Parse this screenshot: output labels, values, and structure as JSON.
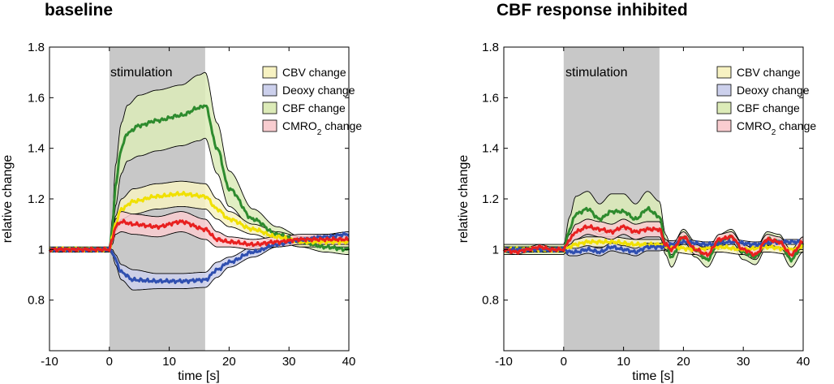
{
  "chart_data": [
    {
      "type": "line",
      "title": "baseline",
      "xlabel": "time [s]",
      "ylabel": "relative change",
      "xlim": [
        -10,
        40
      ],
      "ylim": [
        0.6,
        1.8
      ],
      "xticks": [
        -10,
        0,
        10,
        20,
        30,
        40
      ],
      "yticks": [
        0.8,
        1,
        1.2,
        1.4,
        1.6,
        1.8
      ],
      "stimulation": {
        "label": "stimulation",
        "start": 0,
        "end": 16
      },
      "legend": [
        {
          "label": "CBV change",
          "fill": "#f7f2c2"
        },
        {
          "label": "Deoxy change",
          "fill": "#ccd0ec"
        },
        {
          "label": "CBF change",
          "fill": "#dcebb8"
        },
        {
          "label": "CMRO",
          "sub": "2",
          "suffix": " change",
          "fill": "#f9cdd0"
        }
      ],
      "series": [
        {
          "name": "CBF change",
          "color": "#2e8b2e",
          "band": "#dcebb8",
          "x": [
            -10,
            0,
            0.5,
            1,
            2,
            3,
            5,
            8,
            12,
            15,
            16,
            18,
            20,
            24,
            28,
            32,
            36,
            40
          ],
          "y": [
            1.0,
            1.0,
            1.08,
            1.25,
            1.4,
            1.46,
            1.49,
            1.51,
            1.53,
            1.56,
            1.57,
            1.4,
            1.24,
            1.12,
            1.06,
            1.03,
            1.01,
            1.0
          ],
          "spread": [
            0.01,
            0.01,
            0.04,
            0.08,
            0.1,
            0.11,
            0.12,
            0.12,
            0.12,
            0.13,
            0.13,
            0.1,
            0.07,
            0.04,
            0.03,
            0.02,
            0.02,
            0.02
          ]
        },
        {
          "name": "CBV change",
          "color": "#f0e000",
          "band": "#f7f2c2",
          "x": [
            -10,
            0,
            0.5,
            1,
            2,
            4,
            8,
            12,
            16,
            18,
            20,
            24,
            28,
            32,
            36,
            40
          ],
          "y": [
            1.0,
            1.0,
            1.05,
            1.1,
            1.16,
            1.19,
            1.21,
            1.22,
            1.21,
            1.16,
            1.12,
            1.08,
            1.05,
            1.03,
            1.03,
            1.03
          ],
          "spread": [
            0.005,
            0.005,
            0.02,
            0.03,
            0.04,
            0.05,
            0.05,
            0.05,
            0.05,
            0.04,
            0.03,
            0.02,
            0.02,
            0.02,
            0.02,
            0.02
          ]
        },
        {
          "name": "Deoxy change",
          "color": "#2f4fb0",
          "band": "#ccd0ec",
          "x": [
            -10,
            0,
            0.5,
            1,
            2,
            4,
            8,
            12,
            16,
            18,
            20,
            24,
            28,
            32,
            36,
            40
          ],
          "y": [
            1.0,
            1.0,
            0.99,
            0.96,
            0.91,
            0.88,
            0.875,
            0.875,
            0.88,
            0.92,
            0.95,
            0.99,
            1.02,
            1.04,
            1.05,
            1.06
          ],
          "spread": [
            0.005,
            0.005,
            0.01,
            0.02,
            0.03,
            0.04,
            0.03,
            0.03,
            0.03,
            0.03,
            0.02,
            0.02,
            0.01,
            0.01,
            0.01,
            0.01
          ]
        },
        {
          "name": "CMRO2 change",
          "color": "#e82020",
          "band": "#f9cdd0",
          "x": [
            -10,
            0,
            0.5,
            1,
            2,
            4,
            8,
            12,
            16,
            18,
            20,
            24,
            28,
            32,
            36,
            40
          ],
          "y": [
            1.0,
            1.0,
            1.04,
            1.09,
            1.11,
            1.1,
            1.09,
            1.11,
            1.08,
            1.04,
            1.03,
            1.02,
            1.03,
            1.04,
            1.04,
            1.04
          ],
          "spread": [
            0.005,
            0.005,
            0.02,
            0.03,
            0.04,
            0.04,
            0.04,
            0.04,
            0.04,
            0.03,
            0.02,
            0.02,
            0.02,
            0.02,
            0.02,
            0.02
          ]
        }
      ]
    },
    {
      "type": "line",
      "title": "CBF response inhibited",
      "xlabel": "time [s]",
      "ylabel": "relative change",
      "xlim": [
        -10,
        40
      ],
      "ylim": [
        0.6,
        1.8
      ],
      "xticks": [
        -10,
        0,
        10,
        20,
        30,
        40
      ],
      "yticks": [
        0.8,
        1,
        1.2,
        1.4,
        1.6,
        1.8
      ],
      "stimulation": {
        "label": "stimulation",
        "start": 0,
        "end": 16
      },
      "legend": [
        {
          "label": "CBV change",
          "fill": "#f7f2c2"
        },
        {
          "label": "Deoxy change",
          "fill": "#ccd0ec"
        },
        {
          "label": "CBF change",
          "fill": "#dcebb8"
        },
        {
          "label": "CMRO",
          "sub": "2",
          "suffix": " change",
          "fill": "#f9cdd0"
        }
      ],
      "series": [
        {
          "name": "CBF change",
          "color": "#2e8b2e",
          "band": "#dcebb8",
          "x": [
            -10,
            0,
            1,
            2,
            4,
            6,
            8,
            10,
            12,
            14,
            16,
            17,
            18,
            20,
            22,
            24,
            26,
            28,
            30,
            32,
            34,
            36,
            38,
            40
          ],
          "y": [
            1.0,
            1.0,
            1.08,
            1.14,
            1.16,
            1.12,
            1.15,
            1.15,
            1.12,
            1.16,
            1.13,
            1.02,
            0.97,
            1.05,
            1.0,
            0.96,
            1.03,
            1.05,
            0.99,
            0.97,
            1.04,
            1.03,
            0.96,
            1.02
          ],
          "spread": [
            0.02,
            0.02,
            0.05,
            0.07,
            0.07,
            0.06,
            0.07,
            0.07,
            0.06,
            0.07,
            0.06,
            0.04,
            0.04,
            0.03,
            0.03,
            0.03,
            0.03,
            0.03,
            0.03,
            0.03,
            0.03,
            0.03,
            0.03,
            0.03
          ]
        },
        {
          "name": "CBV change",
          "color": "#f0e000",
          "band": "#f7f2c2",
          "x": [
            -10,
            0,
            2,
            4,
            8,
            12,
            16,
            18,
            22,
            26,
            30,
            34,
            38,
            40
          ],
          "y": [
            1.0,
            1.0,
            1.02,
            1.03,
            1.03,
            1.02,
            1.02,
            1.01,
            1.0,
            1.01,
            1.0,
            1.01,
            1.0,
            1.01
          ],
          "spread": [
            0.01,
            0.01,
            0.02,
            0.02,
            0.02,
            0.02,
            0.02,
            0.02,
            0.02,
            0.02,
            0.02,
            0.02,
            0.02,
            0.02
          ]
        },
        {
          "name": "Deoxy change",
          "color": "#2f4fb0",
          "band": "#ccd0ec",
          "x": [
            -10,
            0,
            1,
            2,
            4,
            6,
            8,
            10,
            12,
            14,
            16,
            18,
            20,
            24,
            28,
            32,
            36,
            40
          ],
          "y": [
            1.0,
            1.0,
            0.99,
            0.99,
            1.0,
            0.99,
            1.01,
            1.0,
            0.99,
            1.01,
            1.01,
            1.02,
            1.03,
            1.02,
            1.03,
            1.02,
            1.03,
            1.03
          ],
          "spread": [
            0.01,
            0.01,
            0.015,
            0.015,
            0.015,
            0.015,
            0.015,
            0.015,
            0.015,
            0.015,
            0.015,
            0.015,
            0.01,
            0.01,
            0.01,
            0.01,
            0.01,
            0.01
          ]
        },
        {
          "name": "CMRO2 change",
          "color": "#e82020",
          "band": "#f9cdd0",
          "x": [
            -10,
            -8,
            -6,
            -4,
            -2,
            0,
            1,
            2,
            4,
            6,
            8,
            10,
            12,
            14,
            16,
            17,
            18,
            20,
            22,
            24,
            26,
            28,
            30,
            32,
            34,
            36,
            38,
            40
          ],
          "y": [
            1.0,
            0.99,
            1.0,
            1.01,
            1.0,
            1.0,
            1.04,
            1.07,
            1.09,
            1.08,
            1.07,
            1.09,
            1.07,
            1.08,
            1.08,
            1.02,
            1.0,
            1.05,
            1.0,
            0.98,
            1.04,
            1.05,
            1.0,
            0.98,
            1.04,
            1.03,
            0.98,
            1.03
          ],
          "spread": [
            0.01,
            0.01,
            0.01,
            0.01,
            0.01,
            0.01,
            0.02,
            0.03,
            0.03,
            0.03,
            0.03,
            0.03,
            0.03,
            0.03,
            0.03,
            0.02,
            0.02,
            0.02,
            0.02,
            0.02,
            0.02,
            0.02,
            0.02,
            0.02,
            0.02,
            0.02,
            0.02,
            0.02
          ]
        }
      ]
    }
  ]
}
